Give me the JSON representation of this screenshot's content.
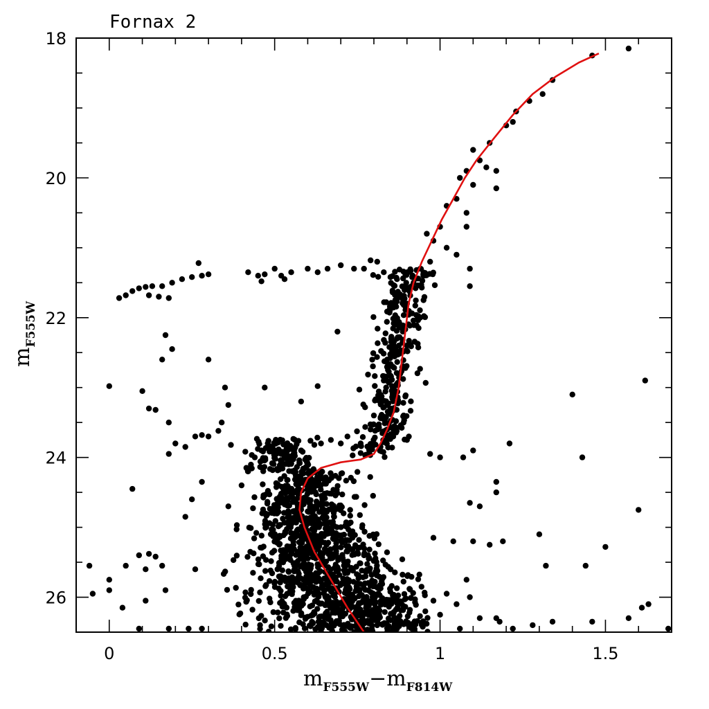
{
  "chart_data": {
    "type": "scatter",
    "title": "Fornax 2",
    "xlabel": {
      "main": "m",
      "sub": "F555W",
      "minus": "−",
      "main2": "m",
      "sub2": "F814W"
    },
    "ylabel": {
      "main": "m",
      "sub": "F555W"
    },
    "xlim": [
      -0.1,
      1.7
    ],
    "ylim": [
      26.5,
      18
    ],
    "y_inverted": true,
    "x_ticks": [
      {
        "value": 0,
        "label": "0"
      },
      {
        "value": 0.5,
        "label": "0.5"
      },
      {
        "value": 1,
        "label": "1"
      },
      {
        "value": 1.5,
        "label": "1.5"
      }
    ],
    "y_ticks": [
      {
        "value": 18,
        "label": "18"
      },
      {
        "value": 20,
        "label": "20"
      },
      {
        "value": 22,
        "label": "22"
      },
      {
        "value": 24,
        "label": "24"
      },
      {
        "value": 26,
        "label": "26"
      }
    ],
    "x_minor_step": 0.1,
    "y_minor_step": 0.5,
    "grid": false,
    "point_color": "#000000",
    "curve_color": "#e01010",
    "series": [
      {
        "kind": "points",
        "values": [
          [
            1.46,
            18.25
          ],
          [
            1.57,
            18.15
          ],
          [
            1.34,
            18.6
          ],
          [
            1.31,
            18.8
          ],
          [
            1.27,
            18.9
          ],
          [
            1.23,
            19.05
          ],
          [
            1.22,
            19.2
          ],
          [
            1.2,
            19.25
          ],
          [
            1.15,
            19.5
          ],
          [
            1.1,
            19.6
          ],
          [
            1.12,
            19.75
          ],
          [
            1.14,
            19.85
          ],
          [
            1.08,
            19.9
          ],
          [
            1.06,
            20.0
          ],
          [
            1.17,
            19.9
          ],
          [
            1.1,
            20.1
          ],
          [
            1.17,
            20.15
          ],
          [
            1.05,
            20.3
          ],
          [
            1.02,
            20.4
          ],
          [
            1.08,
            20.5
          ],
          [
            1.0,
            20.7
          ],
          [
            0.98,
            20.9
          ],
          [
            1.02,
            21.0
          ],
          [
            0.96,
            20.8
          ],
          [
            1.08,
            20.7
          ],
          [
            1.05,
            21.1
          ],
          [
            0.97,
            21.2
          ],
          [
            0.94,
            21.3
          ],
          [
            0.92,
            21.5
          ],
          [
            1.09,
            21.3
          ],
          [
            1.09,
            21.55
          ],
          [
            0.9,
            21.8
          ],
          [
            0.95,
            21.75
          ],
          [
            0.88,
            22.1
          ],
          [
            0.94,
            22.0
          ],
          [
            0.86,
            22.4
          ],
          [
            0.9,
            22.4
          ],
          [
            0.84,
            22.6
          ],
          [
            0.88,
            22.8
          ],
          [
            0.83,
            22.9
          ],
          [
            0.86,
            23.0
          ],
          [
            0.82,
            23.2
          ],
          [
            0.85,
            23.3
          ],
          [
            0.8,
            23.4
          ],
          [
            0.89,
            23.4
          ],
          [
            0.79,
            23.6
          ],
          [
            0.84,
            23.6
          ],
          [
            0.76,
            23.8
          ],
          [
            0.82,
            23.85
          ],
          [
            0.9,
            23.75
          ],
          [
            0.03,
            21.72
          ],
          [
            0.05,
            21.68
          ],
          [
            0.07,
            21.62
          ],
          [
            0.09,
            21.58
          ],
          [
            0.11,
            21.56
          ],
          [
            0.13,
            21.55
          ],
          [
            0.16,
            21.55
          ],
          [
            0.19,
            21.5
          ],
          [
            0.22,
            21.45
          ],
          [
            0.25,
            21.42
          ],
          [
            0.28,
            21.4
          ],
          [
            0.3,
            21.38
          ],
          [
            0.27,
            21.22
          ],
          [
            0.42,
            21.35
          ],
          [
            0.45,
            21.4
          ],
          [
            0.47,
            21.38
          ],
          [
            0.5,
            21.3
          ],
          [
            0.52,
            21.4
          ],
          [
            0.55,
            21.35
          ],
          [
            0.6,
            21.3
          ],
          [
            0.63,
            21.35
          ],
          [
            0.66,
            21.3
          ],
          [
            0.7,
            21.25
          ],
          [
            0.74,
            21.3
          ],
          [
            0.77,
            21.3
          ],
          [
            0.15,
            21.7
          ],
          [
            0.18,
            21.72
          ],
          [
            0.12,
            21.68
          ],
          [
            0.46,
            21.48
          ],
          [
            0.53,
            21.45
          ],
          [
            0.81,
            21.2
          ],
          [
            0.83,
            21.35
          ],
          [
            0.85,
            21.42
          ],
          [
            0.87,
            21.45
          ],
          [
            0.79,
            21.18
          ],
          [
            0.17,
            22.25
          ],
          [
            0.19,
            22.45
          ],
          [
            0.16,
            22.6
          ],
          [
            0.3,
            22.6
          ],
          [
            0.69,
            22.2
          ],
          [
            0.0,
            22.98
          ],
          [
            0.1,
            23.05
          ],
          [
            0.12,
            23.3
          ],
          [
            0.14,
            23.32
          ],
          [
            0.18,
            23.5
          ],
          [
            0.2,
            23.8
          ],
          [
            0.18,
            23.95
          ],
          [
            0.23,
            23.85
          ],
          [
            0.26,
            23.7
          ],
          [
            0.28,
            23.68
          ],
          [
            0.3,
            23.7
          ],
          [
            0.34,
            23.5
          ],
          [
            0.33,
            23.62
          ],
          [
            0.35,
            23.0
          ],
          [
            0.36,
            23.25
          ],
          [
            0.47,
            23.0
          ],
          [
            0.58,
            23.2
          ],
          [
            0.63,
            22.98
          ],
          [
            0.07,
            24.45
          ],
          [
            0.28,
            24.35
          ],
          [
            0.25,
            24.6
          ],
          [
            0.23,
            24.85
          ],
          [
            0.09,
            25.4
          ],
          [
            0.12,
            25.38
          ],
          [
            0.14,
            25.42
          ],
          [
            0.05,
            25.55
          ],
          [
            0.11,
            25.6
          ],
          [
            0.16,
            25.55
          ],
          [
            0.17,
            25.9
          ],
          [
            0.0,
            25.75
          ],
          [
            -0.06,
            25.55
          ],
          [
            -0.05,
            25.95
          ],
          [
            0.0,
            25.9
          ],
          [
            0.04,
            26.15
          ],
          [
            0.11,
            26.05
          ],
          [
            0.09,
            26.45
          ],
          [
            0.18,
            26.45
          ],
          [
            0.24,
            26.45
          ],
          [
            0.28,
            26.45
          ],
          [
            0.26,
            25.6
          ],
          [
            1.1,
            23.9
          ],
          [
            1.07,
            24.0
          ],
          [
            1.0,
            24.0
          ],
          [
            0.97,
            23.95
          ],
          [
            1.17,
            24.35
          ],
          [
            1.17,
            24.5
          ],
          [
            1.21,
            23.8
          ],
          [
            1.09,
            24.65
          ],
          [
            1.12,
            24.7
          ],
          [
            0.98,
            25.15
          ],
          [
            1.1,
            25.2
          ],
          [
            1.04,
            25.2
          ],
          [
            1.15,
            25.25
          ],
          [
            1.19,
            25.2
          ],
          [
            1.3,
            25.1
          ],
          [
            1.32,
            25.55
          ],
          [
            1.44,
            25.55
          ],
          [
            1.5,
            25.28
          ],
          [
            1.6,
            24.75
          ],
          [
            1.61,
            26.15
          ],
          [
            1.63,
            26.1
          ],
          [
            1.4,
            23.1
          ],
          [
            1.43,
            24.0
          ],
          [
            1.62,
            22.9
          ],
          [
            1.57,
            26.3
          ],
          [
            1.34,
            26.35
          ],
          [
            1.28,
            26.4
          ],
          [
            1.22,
            26.45
          ],
          [
            1.46,
            26.35
          ],
          [
            1.69,
            26.45
          ],
          [
            1.05,
            26.1
          ],
          [
            1.09,
            26.0
          ],
          [
            1.12,
            26.3
          ],
          [
            1.17,
            26.3
          ],
          [
            1.18,
            26.35
          ],
          [
            1.08,
            25.75
          ],
          [
            1.02,
            25.95
          ],
          [
            1.0,
            26.25
          ],
          [
            1.06,
            26.45
          ],
          [
            0.98,
            26.05
          ],
          [
            0.36,
            24.7
          ],
          [
            0.4,
            24.4
          ],
          [
            0.42,
            24.2
          ],
          [
            0.44,
            24.0
          ],
          [
            0.46,
            23.9
          ],
          [
            0.48,
            23.85
          ],
          [
            0.5,
            23.9
          ],
          [
            0.52,
            23.95
          ],
          [
            0.55,
            23.88
          ],
          [
            0.58,
            23.9
          ],
          [
            0.62,
            23.82
          ],
          [
            0.64,
            23.8
          ],
          [
            0.67,
            23.75
          ],
          [
            0.7,
            23.8
          ],
          [
            0.72,
            23.7
          ]
        ]
      },
      {
        "kind": "curve",
        "values": [
          [
            0.77,
            26.5
          ],
          [
            0.72,
            26.15
          ],
          [
            0.67,
            25.75
          ],
          [
            0.62,
            25.35
          ],
          [
            0.59,
            25.0
          ],
          [
            0.575,
            24.75
          ],
          [
            0.58,
            24.5
          ],
          [
            0.6,
            24.3
          ],
          [
            0.64,
            24.15
          ],
          [
            0.7,
            24.07
          ],
          [
            0.76,
            24.03
          ],
          [
            0.8,
            23.95
          ],
          [
            0.82,
            23.8
          ],
          [
            0.84,
            23.6
          ],
          [
            0.86,
            23.35
          ],
          [
            0.875,
            23.0
          ],
          [
            0.885,
            22.6
          ],
          [
            0.895,
            22.2
          ],
          [
            0.905,
            21.8
          ],
          [
            0.92,
            21.5
          ],
          [
            0.945,
            21.2
          ],
          [
            0.975,
            20.9
          ],
          [
            1.005,
            20.6
          ],
          [
            1.04,
            20.3
          ],
          [
            1.075,
            20.0
          ],
          [
            1.11,
            19.75
          ],
          [
            1.16,
            19.45
          ],
          [
            1.22,
            19.1
          ],
          [
            1.28,
            18.8
          ],
          [
            1.35,
            18.55
          ],
          [
            1.42,
            18.35
          ],
          [
            1.48,
            18.22
          ]
        ]
      }
    ],
    "dense_cloud": {
      "description_counts": "main-sequence turnoff cloud",
      "count": 1400,
      "center": [
        0.57,
        25.2
      ],
      "spread": [
        0.1,
        0.62
      ],
      "ylim": [
        23.7,
        26.5
      ],
      "xlim": [
        0.33,
        0.98
      ]
    },
    "dense_subgiant": {
      "count": 320,
      "ylim": [
        21.3,
        24.0
      ],
      "center_curve_offset": 0.0,
      "spread": 0.035
    }
  }
}
